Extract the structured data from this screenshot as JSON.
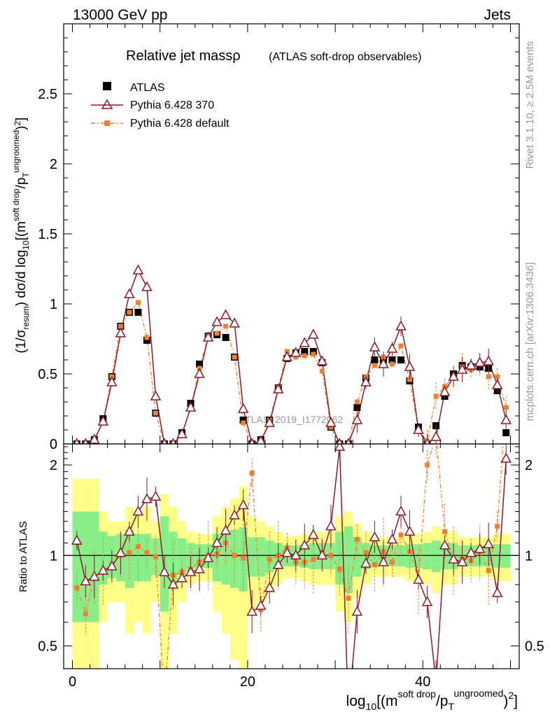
{
  "header": {
    "left": "13000 GeV pp",
    "right": "Jets"
  },
  "side": {
    "rivet": "Rivet 3.1.10, ≥ 2.5M events",
    "mcplots": "mcplots.cern.ch [arXiv:1306.3436]"
  },
  "plot_title": {
    "main": "Relative jet massρ",
    "sub": "(ATLAS soft-drop observables)"
  },
  "watermark": "ATLAS_2019_I1772062",
  "legend": {
    "atlas": "ATLAS",
    "p370": "Pythia 6.428 370",
    "pdef": "Pythia 6.428 default"
  },
  "colors": {
    "atlas": "#000000",
    "p370": "#8b1a2b",
    "pdef": "#f08030",
    "band_inner": "#88ee88",
    "band_outer": "#ffff88"
  },
  "chart_data": {
    "type": "line",
    "title": "Relative jet massρ (ATLAS soft-drop observables)",
    "xlabel": "log10[(m^{soft drop}/p_T^{ungroomed})^2]",
    "ylabel_main": "(1/σresum) dσ/d log10[(m^{soft drop}/p_T^{ungroomed})^2]",
    "ylabel_ratio": "Ratio to ATLAS",
    "xlim": [
      -1,
      51
    ],
    "ylim_main": [
      0,
      3.0
    ],
    "ylim_ratio": [
      0.42,
      2.35
    ],
    "x_ticks": [
      "0",
      "20",
      "40"
    ],
    "y_ticks_main": [
      "0",
      "0.5",
      "1",
      "1.5",
      "2",
      "2.5"
    ],
    "y_ticks_ratio": [
      "0.5",
      "1",
      "2"
    ],
    "x": [
      0.5,
      1.5,
      2.5,
      3.5,
      4.5,
      5.5,
      6.5,
      7.5,
      8.5,
      9.5,
      10.5,
      11.5,
      12.5,
      13.5,
      14.5,
      15.5,
      16.5,
      17.5,
      18.5,
      19.5,
      20.5,
      21.5,
      22.5,
      23.5,
      24.5,
      25.5,
      26.5,
      27.5,
      28.5,
      29.5,
      30.5,
      31.5,
      32.5,
      33.5,
      34.5,
      35.5,
      36.5,
      37.5,
      38.5,
      39.5,
      40.5,
      41.5,
      42.5,
      43.5,
      44.5,
      45.5,
      46.5,
      47.5,
      48.5,
      49.5
    ],
    "series": [
      {
        "name": "ATLAS",
        "values": [
          0.0,
          0.0,
          0.03,
          0.18,
          0.48,
          0.84,
          0.94,
          0.94,
          0.74,
          0.22,
          0.0,
          0.0,
          0.08,
          0.29,
          0.57,
          0.77,
          0.78,
          0.76,
          0.62,
          0.17,
          0.0,
          0.03,
          0.17,
          0.4,
          0.61,
          0.65,
          0.66,
          0.66,
          0.58,
          0.12,
          0.0,
          0.0,
          0.26,
          0.47,
          0.6,
          0.6,
          0.6,
          0.6,
          0.45,
          0.12,
          0.0,
          0.13,
          0.34,
          0.5,
          0.56,
          0.55,
          0.55,
          0.54,
          0.38,
          0.08
        ]
      },
      {
        "name": "Pythia 6.428 370",
        "values": [
          0.0,
          0.0,
          0.03,
          0.16,
          0.44,
          0.79,
          1.07,
          1.24,
          1.12,
          0.34,
          0.0,
          0.0,
          0.07,
          0.26,
          0.5,
          0.76,
          0.87,
          0.92,
          0.86,
          0.25,
          0.0,
          0.02,
          0.15,
          0.39,
          0.62,
          0.65,
          0.72,
          0.78,
          0.59,
          0.15,
          0.0,
          0.0,
          0.17,
          0.44,
          0.69,
          0.57,
          0.68,
          0.84,
          0.55,
          0.1,
          0.0,
          0.05,
          0.37,
          0.48,
          0.53,
          0.56,
          0.58,
          0.59,
          0.42,
          0.17
        ]
      },
      {
        "name": "Pythia 6.428 default",
        "values": [
          0.0,
          0.0,
          0.03,
          0.16,
          0.48,
          0.84,
          0.94,
          1.01,
          0.76,
          0.22,
          0.0,
          0.0,
          0.07,
          0.26,
          0.54,
          0.77,
          0.79,
          0.84,
          0.62,
          0.15,
          0.0,
          0.02,
          0.17,
          0.4,
          0.66,
          0.62,
          0.63,
          0.64,
          0.52,
          0.12,
          0.0,
          0.0,
          0.3,
          0.48,
          0.56,
          0.62,
          0.57,
          0.7,
          0.46,
          0.1,
          0.02,
          0.34,
          0.41,
          0.48,
          0.55,
          0.53,
          0.57,
          0.48,
          0.48,
          0.26
        ]
      }
    ],
    "ratio_series": [
      {
        "name": "Pythia 6.428 370 / ATLAS",
        "values": [
          1.12,
          0.82,
          0.85,
          0.89,
          0.92,
          1.02,
          1.2,
          1.4,
          1.54,
          1.57,
          0.88,
          0.8,
          0.84,
          0.88,
          0.9,
          0.98,
          1.1,
          1.21,
          1.36,
          1.47,
          0.65,
          0.68,
          0.78,
          0.93,
          1.02,
          1.0,
          1.08,
          1.17,
          1.0,
          1.25,
          2.3,
          0.3,
          0.65,
          0.94,
          1.15,
          0.95,
          1.13,
          1.4,
          1.2,
          0.83,
          0.7,
          0.38,
          1.08,
          0.97,
          0.95,
          1.02,
          1.05,
          1.09,
          0.75,
          2.1
        ]
      },
      {
        "name": "Pythia 6.428 default / ATLAS",
        "values": [
          0.78,
          0.64,
          0.85,
          0.89,
          0.93,
          1.0,
          1.02,
          1.07,
          1.02,
          0.99,
          0.33,
          0.86,
          0.88,
          0.9,
          0.95,
          1.0,
          1.01,
          1.1,
          1.0,
          0.98,
          1.88,
          0.66,
          0.97,
          1.0,
          1.06,
          0.95,
          0.95,
          0.97,
          1.02,
          1.0,
          0.9,
          0.72,
          1.13,
          1.02,
          0.93,
          1.03,
          0.95,
          1.17,
          1.03,
          0.83,
          2.0,
          2.5,
          1.2,
          0.96,
          0.98,
          0.96,
          1.02,
          0.89,
          1.25,
          3.25
        ]
      }
    ],
    "band_inner_half": [
      0.4,
      0.4,
      0.4,
      0.2,
      0.16,
      0.18,
      0.22,
      0.18,
      0.18,
      0.14,
      0.35,
      0.2,
      0.14,
      0.1,
      0.09,
      0.09,
      0.18,
      0.2,
      0.22,
      0.24,
      0.15,
      0.15,
      0.12,
      0.1,
      0.08,
      0.08,
      0.09,
      0.1,
      0.1,
      0.1,
      0.2,
      0.25,
      0.15,
      0.1,
      0.08,
      0.08,
      0.08,
      0.08,
      0.09,
      0.09,
      0.1,
      0.12,
      0.1,
      0.1,
      0.08,
      0.08,
      0.08,
      0.08,
      0.09,
      0.09
    ],
    "band_outer_half": [
      0.8,
      0.8,
      0.8,
      0.4,
      0.3,
      0.3,
      0.45,
      0.4,
      0.45,
      0.3,
      0.6,
      0.45,
      0.3,
      0.2,
      0.18,
      0.18,
      0.35,
      0.45,
      0.55,
      0.7,
      0.35,
      0.3,
      0.25,
      0.2,
      0.16,
      0.16,
      0.18,
      0.2,
      0.2,
      0.2,
      0.35,
      0.4,
      0.28,
      0.2,
      0.15,
      0.15,
      0.15,
      0.15,
      0.18,
      0.18,
      0.2,
      0.25,
      0.2,
      0.2,
      0.15,
      0.15,
      0.15,
      0.15,
      0.18,
      0.18
    ],
    "legend_position": "top-left"
  }
}
